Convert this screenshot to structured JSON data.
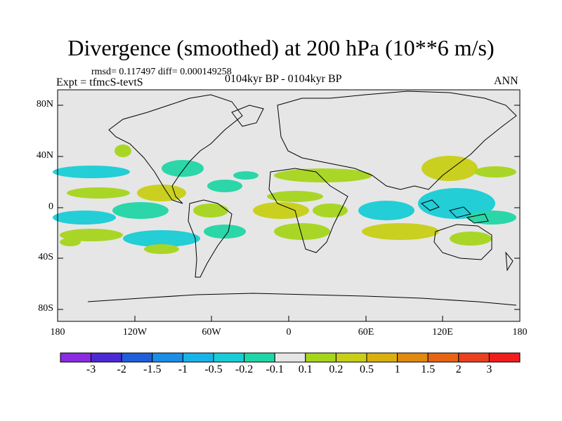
{
  "header": {
    "title": "Divergence (smoothed) at 200 hPa (10**6 m/s)",
    "stats": "rmsd= 0.117497 diff= 0.000149258",
    "experiment": "Expt = tfmcS-tevtS",
    "period": "0104kyr BP - 0104kyr BP",
    "season": "ANN"
  },
  "axes": {
    "lat_ticks": [
      "80N",
      "40N",
      "0",
      "40S",
      "80S"
    ],
    "lon_ticks": [
      "180",
      "120W",
      "60W",
      "0",
      "60E",
      "120E",
      "180"
    ]
  },
  "colorbar": {
    "labels": [
      "-3",
      "-2",
      "-1.5",
      "-1",
      "-0.5",
      "-0.2",
      "-0.1",
      "0.1",
      "0.2",
      "0.5",
      "1",
      "1.5",
      "2",
      "3"
    ],
    "colors": [
      "#8a2be2",
      "#4b2ad6",
      "#1f5fd9",
      "#1c8ee6",
      "#18b4e8",
      "#19cdd6",
      "#21d6a6",
      "#e6e6e6",
      "#a6d61c",
      "#c8cf16",
      "#d9b010",
      "#e08a10",
      "#e66414",
      "#ea4020",
      "#f01e1e"
    ]
  },
  "chart_data": {
    "type": "heatmap",
    "title": "Divergence (smoothed) at 200 hPa (10**6 m/s)",
    "xrange": [
      -180,
      180
    ],
    "yrange": [
      -90,
      90
    ],
    "levels": [
      -3,
      -2,
      -1.5,
      -1,
      -0.5,
      -0.2,
      -0.1,
      0.1,
      0.2,
      0.5,
      1,
      1.5,
      2,
      3
    ],
    "grid": false
  }
}
